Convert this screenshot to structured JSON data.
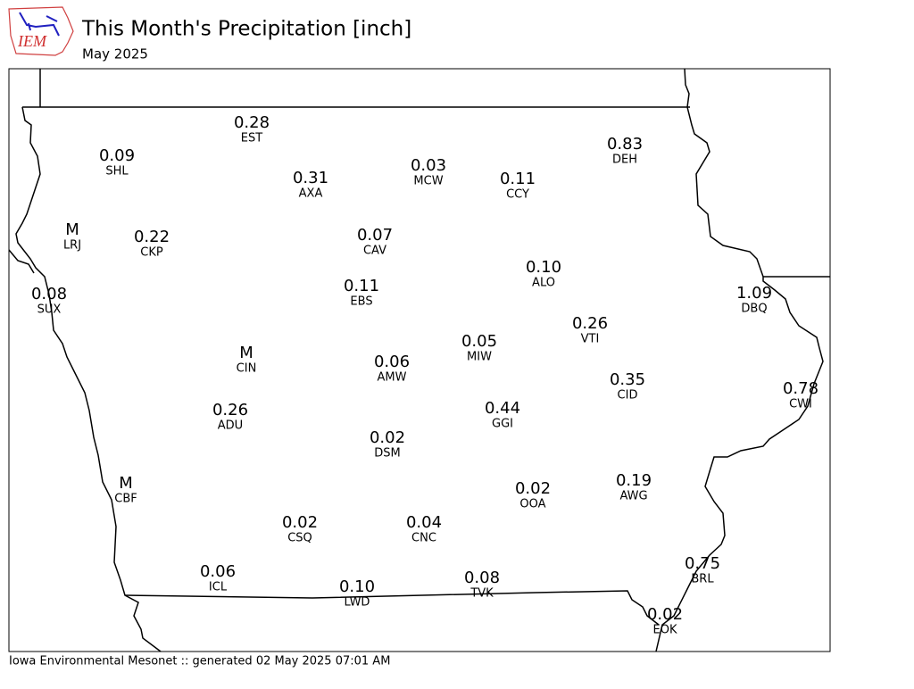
{
  "header": {
    "logo": "IEM",
    "title": "This Month's Precipitation [inch]",
    "subtitle": "May 2025"
  },
  "stations": [
    {
      "id": "EST",
      "value": "0.28"
    },
    {
      "id": "SHL",
      "value": "0.09"
    },
    {
      "id": "AXA",
      "value": "0.31"
    },
    {
      "id": "MCW",
      "value": "0.03"
    },
    {
      "id": "CCY",
      "value": "0.11"
    },
    {
      "id": "DEH",
      "value": "0.83"
    },
    {
      "id": "LRJ",
      "value": "M"
    },
    {
      "id": "CKP",
      "value": "0.22"
    },
    {
      "id": "CAV",
      "value": "0.07"
    },
    {
      "id": "ALO",
      "value": "0.10"
    },
    {
      "id": "SUX",
      "value": "0.08"
    },
    {
      "id": "EBS",
      "value": "0.11"
    },
    {
      "id": "DBQ",
      "value": "1.09"
    },
    {
      "id": "VTI",
      "value": "0.26"
    },
    {
      "id": "MIW",
      "value": "0.05"
    },
    {
      "id": "CIN",
      "value": "M"
    },
    {
      "id": "AMW",
      "value": "0.06"
    },
    {
      "id": "CID",
      "value": "0.35"
    },
    {
      "id": "CWI",
      "value": "0.78"
    },
    {
      "id": "ADU",
      "value": "0.26"
    },
    {
      "id": "GGI",
      "value": "0.44"
    },
    {
      "id": "DSM",
      "value": "0.02"
    },
    {
      "id": "CBF",
      "value": "M"
    },
    {
      "id": "AWG",
      "value": "0.19"
    },
    {
      "id": "OOA",
      "value": "0.02"
    },
    {
      "id": "CSQ",
      "value": "0.02"
    },
    {
      "id": "CNC",
      "value": "0.04"
    },
    {
      "id": "BRL",
      "value": "0.75"
    },
    {
      "id": "ICL",
      "value": "0.06"
    },
    {
      "id": "LWD",
      "value": "0.10"
    },
    {
      "id": "TVK",
      "value": "0.08"
    },
    {
      "id": "EOK",
      "value": "0.02"
    }
  ],
  "footer": "Iowa Environmental Mesonet :: generated 02 May 2025 07:01 AM"
}
